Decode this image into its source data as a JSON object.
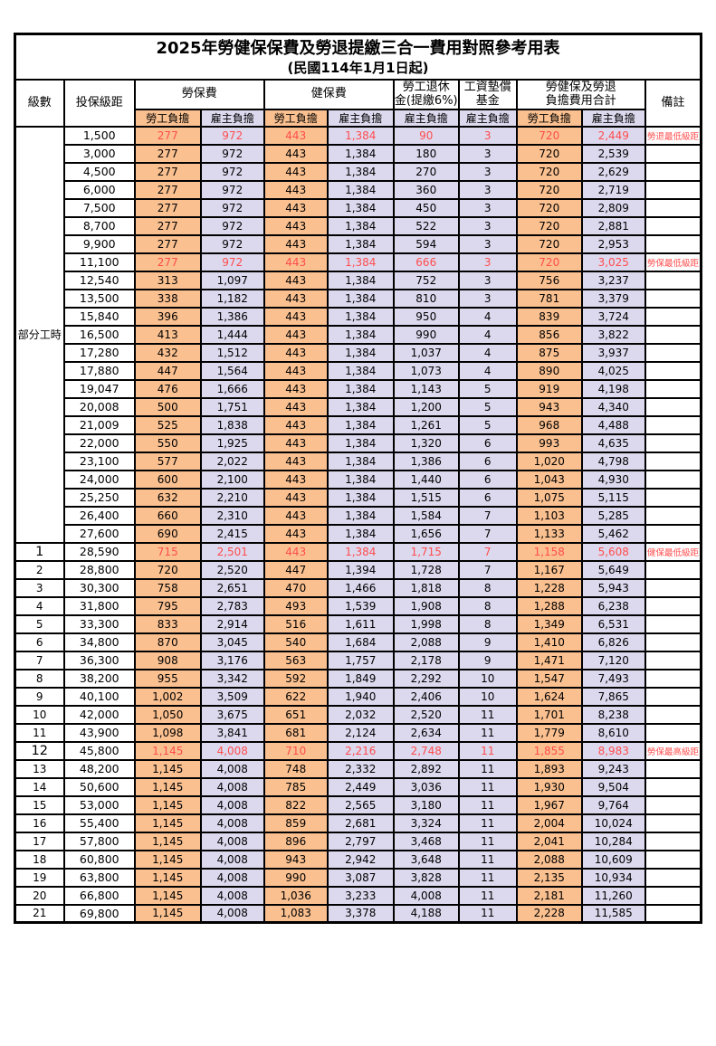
{
  "page": {
    "title": "2025年勞健保保費及勞退提繳三合一費用對照參考用表",
    "subtitle": "(民國114年1月1日起)"
  },
  "table": {
    "headers": {
      "level": "級數",
      "bracket": "投保級距",
      "labor_insurance": "勞保費",
      "health_insurance": "健保費",
      "pension_line1": "勞工退休",
      "pension_line2": "金(提繳6%)",
      "wage_fund_line1": "工資墊償",
      "wage_fund_line2": "基金",
      "total_line1": "勞健保及勞退",
      "total_line2": "負擔費用合計",
      "remark": "備註",
      "employee_share": "勞工負擔",
      "employer_share": "雇主負擔"
    },
    "colors": {
      "employee_bg": "#FAC090",
      "employer_bg": "#DCD9EE",
      "highlight_text": "#FF4D4D"
    },
    "partial_time_label": "部分工時",
    "partial_time_rowspan": 23,
    "rows": [
      {
        "level": "",
        "bracket": "1,500",
        "values": [
          "277",
          "972",
          "443",
          "1,384",
          "90",
          "3",
          "720",
          "2,449"
        ],
        "remark": "勞退最低級距",
        "hl": true,
        "em": false
      },
      {
        "level": "",
        "bracket": "3,000",
        "values": [
          "277",
          "972",
          "443",
          "1,384",
          "180",
          "3",
          "720",
          "2,539"
        ],
        "remark": "",
        "hl": false,
        "em": false
      },
      {
        "level": "",
        "bracket": "4,500",
        "values": [
          "277",
          "972",
          "443",
          "1,384",
          "270",
          "3",
          "720",
          "2,629"
        ],
        "remark": "",
        "hl": false,
        "em": false
      },
      {
        "level": "",
        "bracket": "6,000",
        "values": [
          "277",
          "972",
          "443",
          "1,384",
          "360",
          "3",
          "720",
          "2,719"
        ],
        "remark": "",
        "hl": false,
        "em": false
      },
      {
        "level": "",
        "bracket": "7,500",
        "values": [
          "277",
          "972",
          "443",
          "1,384",
          "450",
          "3",
          "720",
          "2,809"
        ],
        "remark": "",
        "hl": false,
        "em": false
      },
      {
        "level": "",
        "bracket": "8,700",
        "values": [
          "277",
          "972",
          "443",
          "1,384",
          "522",
          "3",
          "720",
          "2,881"
        ],
        "remark": "",
        "hl": false,
        "em": false
      },
      {
        "level": "",
        "bracket": "9,900",
        "values": [
          "277",
          "972",
          "443",
          "1,384",
          "594",
          "3",
          "720",
          "2,953"
        ],
        "remark": "",
        "hl": false,
        "em": false
      },
      {
        "level": "",
        "bracket": "11,100",
        "values": [
          "277",
          "972",
          "443",
          "1,384",
          "666",
          "3",
          "720",
          "3,025"
        ],
        "remark": "勞保最低級距",
        "hl": true,
        "em": false
      },
      {
        "level": "",
        "bracket": "12,540",
        "values": [
          "313",
          "1,097",
          "443",
          "1,384",
          "752",
          "3",
          "756",
          "3,237"
        ],
        "remark": "",
        "hl": false,
        "em": false
      },
      {
        "level": "",
        "bracket": "13,500",
        "values": [
          "338",
          "1,182",
          "443",
          "1,384",
          "810",
          "3",
          "781",
          "3,379"
        ],
        "remark": "",
        "hl": false,
        "em": false
      },
      {
        "level": "",
        "bracket": "15,840",
        "values": [
          "396",
          "1,386",
          "443",
          "1,384",
          "950",
          "4",
          "839",
          "3,724"
        ],
        "remark": "",
        "hl": false,
        "em": false
      },
      {
        "level": "",
        "bracket": "16,500",
        "values": [
          "413",
          "1,444",
          "443",
          "1,384",
          "990",
          "4",
          "856",
          "3,822"
        ],
        "remark": "",
        "hl": false,
        "em": false
      },
      {
        "level": "",
        "bracket": "17,280",
        "values": [
          "432",
          "1,512",
          "443",
          "1,384",
          "1,037",
          "4",
          "875",
          "3,937"
        ],
        "remark": "",
        "hl": false,
        "em": false
      },
      {
        "level": "",
        "bracket": "17,880",
        "values": [
          "447",
          "1,564",
          "443",
          "1,384",
          "1,073",
          "4",
          "890",
          "4,025"
        ],
        "remark": "",
        "hl": false,
        "em": false
      },
      {
        "level": "",
        "bracket": "19,047",
        "values": [
          "476",
          "1,666",
          "443",
          "1,384",
          "1,143",
          "5",
          "919",
          "4,198"
        ],
        "remark": "",
        "hl": false,
        "em": false
      },
      {
        "level": "",
        "bracket": "20,008",
        "values": [
          "500",
          "1,751",
          "443",
          "1,384",
          "1,200",
          "5",
          "943",
          "4,340"
        ],
        "remark": "",
        "hl": false,
        "em": false
      },
      {
        "level": "",
        "bracket": "21,009",
        "values": [
          "525",
          "1,838",
          "443",
          "1,384",
          "1,261",
          "5",
          "968",
          "4,488"
        ],
        "remark": "",
        "hl": false,
        "em": false
      },
      {
        "level": "",
        "bracket": "22,000",
        "values": [
          "550",
          "1,925",
          "443",
          "1,384",
          "1,320",
          "6",
          "993",
          "4,635"
        ],
        "remark": "",
        "hl": false,
        "em": false
      },
      {
        "level": "",
        "bracket": "23,100",
        "values": [
          "577",
          "2,022",
          "443",
          "1,384",
          "1,386",
          "6",
          "1,020",
          "4,798"
        ],
        "remark": "",
        "hl": false,
        "em": false
      },
      {
        "level": "",
        "bracket": "24,000",
        "values": [
          "600",
          "2,100",
          "443",
          "1,384",
          "1,440",
          "6",
          "1,043",
          "4,930"
        ],
        "remark": "",
        "hl": false,
        "em": false
      },
      {
        "level": "",
        "bracket": "25,250",
        "values": [
          "632",
          "2,210",
          "443",
          "1,384",
          "1,515",
          "6",
          "1,075",
          "5,115"
        ],
        "remark": "",
        "hl": false,
        "em": false
      },
      {
        "level": "",
        "bracket": "26,400",
        "values": [
          "660",
          "2,310",
          "443",
          "1,384",
          "1,584",
          "7",
          "1,103",
          "5,285"
        ],
        "remark": "",
        "hl": false,
        "em": false
      },
      {
        "level": "",
        "bracket": "27,600",
        "values": [
          "690",
          "2,415",
          "443",
          "1,384",
          "1,656",
          "7",
          "1,133",
          "5,462"
        ],
        "remark": "",
        "hl": false,
        "em": false
      },
      {
        "level": "1",
        "bracket": "28,590",
        "values": [
          "715",
          "2,501",
          "443",
          "1,384",
          "1,715",
          "7",
          "1,158",
          "5,608"
        ],
        "remark": "健保最低級距",
        "hl": true,
        "em": true
      },
      {
        "level": "2",
        "bracket": "28,800",
        "values": [
          "720",
          "2,520",
          "447",
          "1,394",
          "1,728",
          "7",
          "1,167",
          "5,649"
        ],
        "remark": "",
        "hl": false,
        "em": false
      },
      {
        "level": "3",
        "bracket": "30,300",
        "values": [
          "758",
          "2,651",
          "470",
          "1,466",
          "1,818",
          "8",
          "1,228",
          "5,943"
        ],
        "remark": "",
        "hl": false,
        "em": false
      },
      {
        "level": "4",
        "bracket": "31,800",
        "values": [
          "795",
          "2,783",
          "493",
          "1,539",
          "1,908",
          "8",
          "1,288",
          "6,238"
        ],
        "remark": "",
        "hl": false,
        "em": false
      },
      {
        "level": "5",
        "bracket": "33,300",
        "values": [
          "833",
          "2,914",
          "516",
          "1,611",
          "1,998",
          "8",
          "1,349",
          "6,531"
        ],
        "remark": "",
        "hl": false,
        "em": false
      },
      {
        "level": "6",
        "bracket": "34,800",
        "values": [
          "870",
          "3,045",
          "540",
          "1,684",
          "2,088",
          "9",
          "1,410",
          "6,826"
        ],
        "remark": "",
        "hl": false,
        "em": false
      },
      {
        "level": "7",
        "bracket": "36,300",
        "values": [
          "908",
          "3,176",
          "563",
          "1,757",
          "2,178",
          "9",
          "1,471",
          "7,120"
        ],
        "remark": "",
        "hl": false,
        "em": false
      },
      {
        "level": "8",
        "bracket": "38,200",
        "values": [
          "955",
          "3,342",
          "592",
          "1,849",
          "2,292",
          "10",
          "1,547",
          "7,493"
        ],
        "remark": "",
        "hl": false,
        "em": false
      },
      {
        "level": "9",
        "bracket": "40,100",
        "values": [
          "1,002",
          "3,509",
          "622",
          "1,940",
          "2,406",
          "10",
          "1,624",
          "7,865"
        ],
        "remark": "",
        "hl": false,
        "em": false
      },
      {
        "level": "10",
        "bracket": "42,000",
        "values": [
          "1,050",
          "3,675",
          "651",
          "2,032",
          "2,520",
          "11",
          "1,701",
          "8,238"
        ],
        "remark": "",
        "hl": false,
        "em": false
      },
      {
        "level": "11",
        "bracket": "43,900",
        "values": [
          "1,098",
          "3,841",
          "681",
          "2,124",
          "2,634",
          "11",
          "1,779",
          "8,610"
        ],
        "remark": "",
        "hl": false,
        "em": false
      },
      {
        "level": "12",
        "bracket": "45,800",
        "values": [
          "1,145",
          "4,008",
          "710",
          "2,216",
          "2,748",
          "11",
          "1,855",
          "8,983"
        ],
        "remark": "勞保最高級距",
        "hl": true,
        "em": true
      },
      {
        "level": "13",
        "bracket": "48,200",
        "values": [
          "1,145",
          "4,008",
          "748",
          "2,332",
          "2,892",
          "11",
          "1,893",
          "9,243"
        ],
        "remark": "",
        "hl": false,
        "em": false
      },
      {
        "level": "14",
        "bracket": "50,600",
        "values": [
          "1,145",
          "4,008",
          "785",
          "2,449",
          "3,036",
          "11",
          "1,930",
          "9,504"
        ],
        "remark": "",
        "hl": false,
        "em": false
      },
      {
        "level": "15",
        "bracket": "53,000",
        "values": [
          "1,145",
          "4,008",
          "822",
          "2,565",
          "3,180",
          "11",
          "1,967",
          "9,764"
        ],
        "remark": "",
        "hl": false,
        "em": false
      },
      {
        "level": "16",
        "bracket": "55,400",
        "values": [
          "1,145",
          "4,008",
          "859",
          "2,681",
          "3,324",
          "11",
          "2,004",
          "10,024"
        ],
        "remark": "",
        "hl": false,
        "em": false
      },
      {
        "level": "17",
        "bracket": "57,800",
        "values": [
          "1,145",
          "4,008",
          "896",
          "2,797",
          "3,468",
          "11",
          "2,041",
          "10,284"
        ],
        "remark": "",
        "hl": false,
        "em": false
      },
      {
        "level": "18",
        "bracket": "60,800",
        "values": [
          "1,145",
          "4,008",
          "943",
          "2,942",
          "3,648",
          "11",
          "2,088",
          "10,609"
        ],
        "remark": "",
        "hl": false,
        "em": false
      },
      {
        "level": "19",
        "bracket": "63,800",
        "values": [
          "1,145",
          "4,008",
          "990",
          "3,087",
          "3,828",
          "11",
          "2,135",
          "10,934"
        ],
        "remark": "",
        "hl": false,
        "em": false
      },
      {
        "level": "20",
        "bracket": "66,800",
        "values": [
          "1,145",
          "4,008",
          "1,036",
          "3,233",
          "4,008",
          "11",
          "2,181",
          "11,260"
        ],
        "remark": "",
        "hl": false,
        "em": false
      },
      {
        "level": "21",
        "bracket": "69,800",
        "values": [
          "1,145",
          "4,008",
          "1,083",
          "3,378",
          "4,188",
          "11",
          "2,228",
          "11,585"
        ],
        "remark": "",
        "hl": false,
        "em": false
      }
    ]
  }
}
